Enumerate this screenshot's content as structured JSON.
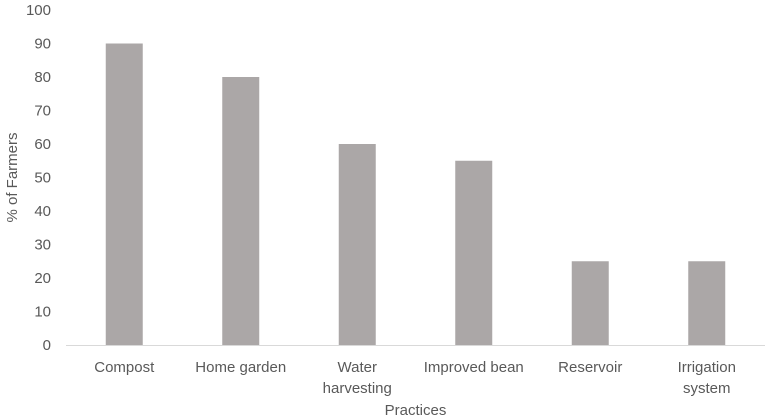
{
  "chart_data": {
    "type": "bar",
    "title": "",
    "xlabel": "Practices",
    "ylabel": "% of Farmers",
    "categories": [
      [
        "Compost"
      ],
      [
        "Home garden"
      ],
      [
        "Water",
        "harvesting"
      ],
      [
        "Improved bean"
      ],
      [
        "Reservoir"
      ],
      [
        "Irrigation",
        "system"
      ]
    ],
    "values": [
      90,
      80,
      60,
      55,
      25,
      25
    ],
    "ylim": [
      0,
      100
    ],
    "yticks": [
      "0",
      "10",
      "20",
      "30",
      "40",
      "50",
      "60",
      "70",
      "80",
      "90",
      "100"
    ],
    "grid": false,
    "legend": "none",
    "bar_color": "#ABA7A7",
    "axis_color": "#D9D9D9",
    "text_color": "#595959"
  }
}
